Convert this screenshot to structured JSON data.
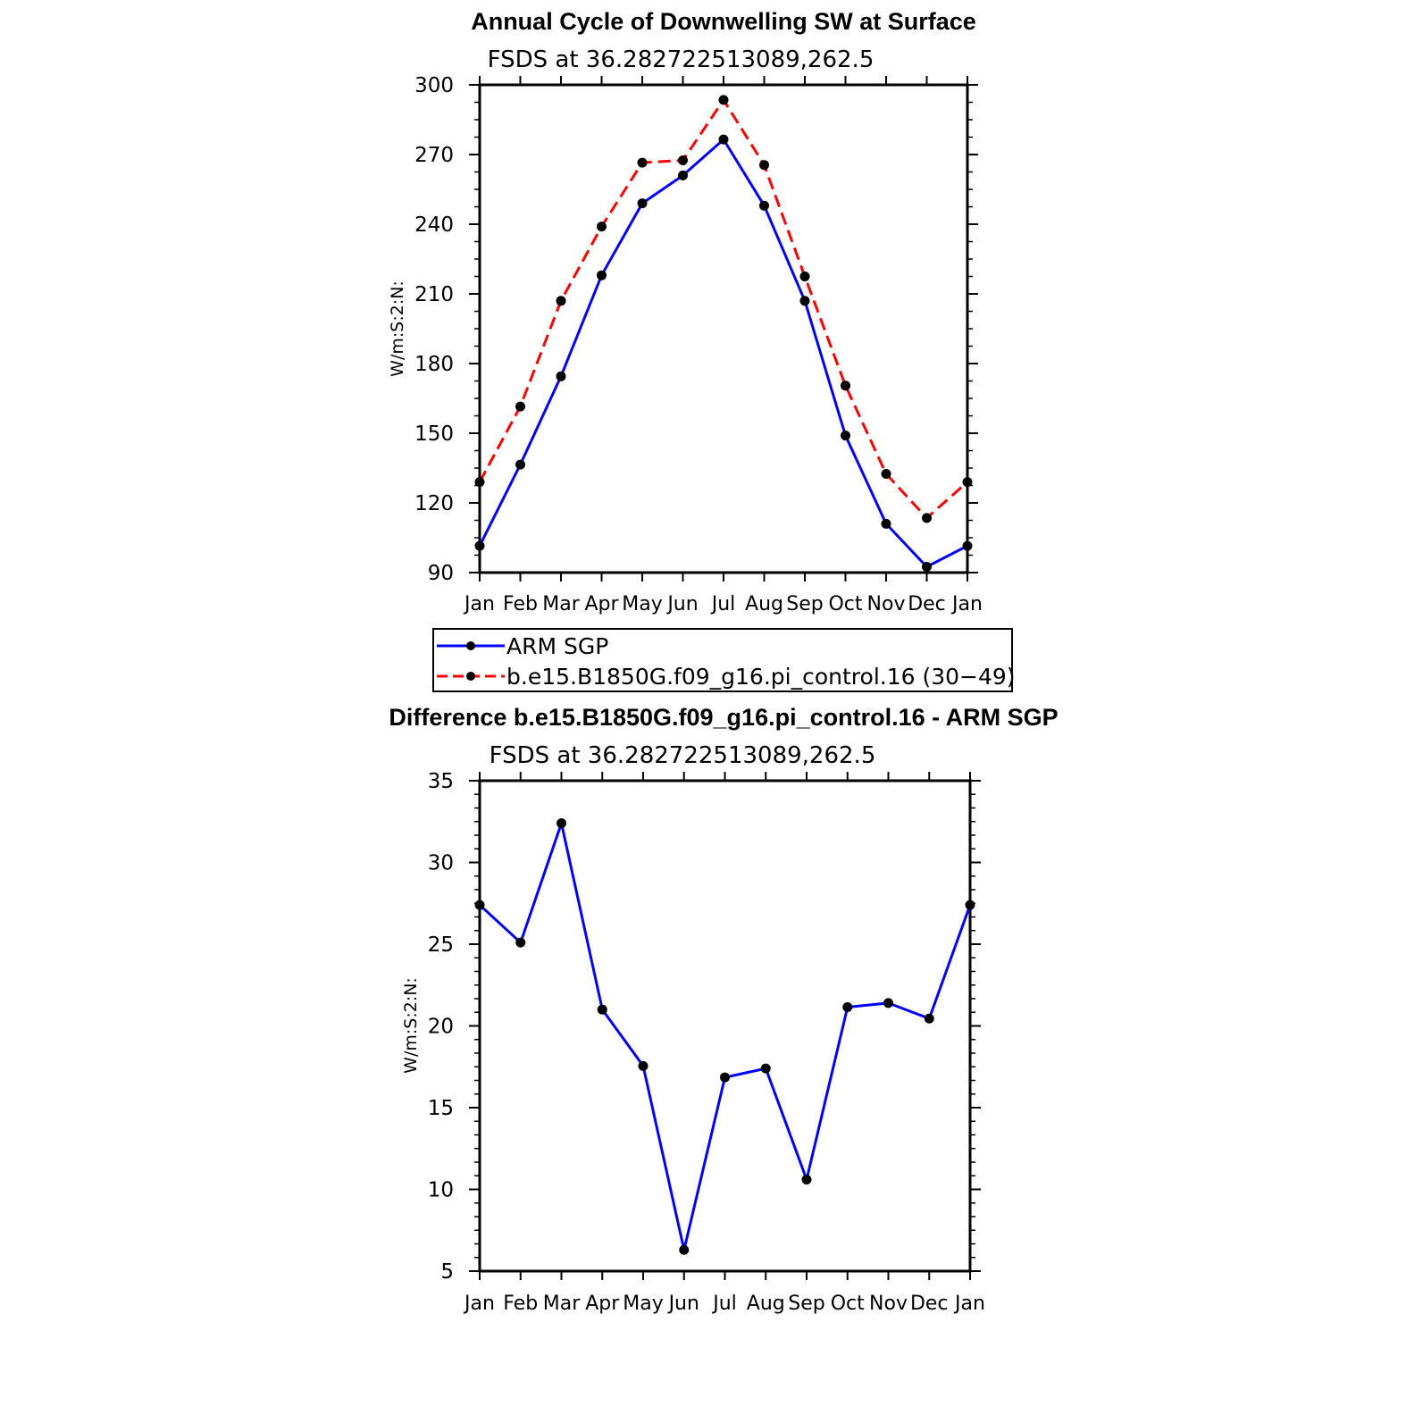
{
  "legend": {
    "entries": [
      {
        "label": "ARM SGP",
        "color": "#0000ff",
        "style": "solid"
      },
      {
        "label": "b.e15.B1850G.f09_g16.pi_control.16 (30−49)",
        "color": "#ff0000",
        "style": "dashed"
      }
    ]
  },
  "chart_data": [
    {
      "type": "line",
      "title": "Annual Cycle of Downwelling SW at Surface",
      "subtitle": "FSDS at 36.282722513089,262.5",
      "xlabel": "",
      "ylabel": "W/m:S:2:N:",
      "ylim": [
        90,
        300
      ],
      "yticks": [
        "90",
        "120",
        "150",
        "180",
        "210",
        "240",
        "270",
        "300"
      ],
      "categories": [
        "Jan",
        "Feb",
        "Mar",
        "Apr",
        "May",
        "Jun",
        "Jul",
        "Aug",
        "Sep",
        "Oct",
        "Nov",
        "Dec",
        "Jan"
      ],
      "grid": false,
      "legend_position": "below",
      "series": [
        {
          "name": "ARM SGP",
          "color": "#0000ff",
          "style": "solid",
          "values": [
            101.5,
            136.5,
            174.5,
            218,
            249,
            261,
            276.5,
            248,
            207,
            149,
            111,
            92.5,
            101.5
          ]
        },
        {
          "name": "b.e15.B1850G.f09_g16.pi_control.16 (30−49)",
          "color": "#ff0000",
          "style": "dashed",
          "values": [
            129,
            161.5,
            207,
            239,
            266.5,
            267.5,
            293.5,
            265.5,
            217.5,
            170.5,
            132.5,
            113.5,
            129
          ]
        }
      ]
    },
    {
      "type": "line",
      "title": "Difference b.e15.B1850G.f09_g16.pi_control.16 - ARM SGP",
      "subtitle": "FSDS at 36.282722513089,262.5",
      "xlabel": "",
      "ylabel": "W/m:S:2:N:",
      "ylim": [
        5,
        35
      ],
      "yticks": [
        "5",
        "10",
        "15",
        "20",
        "25",
        "30",
        "35"
      ],
      "categories": [
        "Jan",
        "Feb",
        "Mar",
        "Apr",
        "May",
        "Jun",
        "Jul",
        "Aug",
        "Sep",
        "Oct",
        "Nov",
        "Dec",
        "Jan"
      ],
      "grid": false,
      "series": [
        {
          "color": "#0000ff",
          "style": "solid",
          "values": [
            27.4,
            25.1,
            32.4,
            21.0,
            17.55,
            6.3,
            16.85,
            17.4,
            10.6,
            21.15,
            21.4,
            20.45,
            27.4
          ]
        }
      ]
    }
  ]
}
